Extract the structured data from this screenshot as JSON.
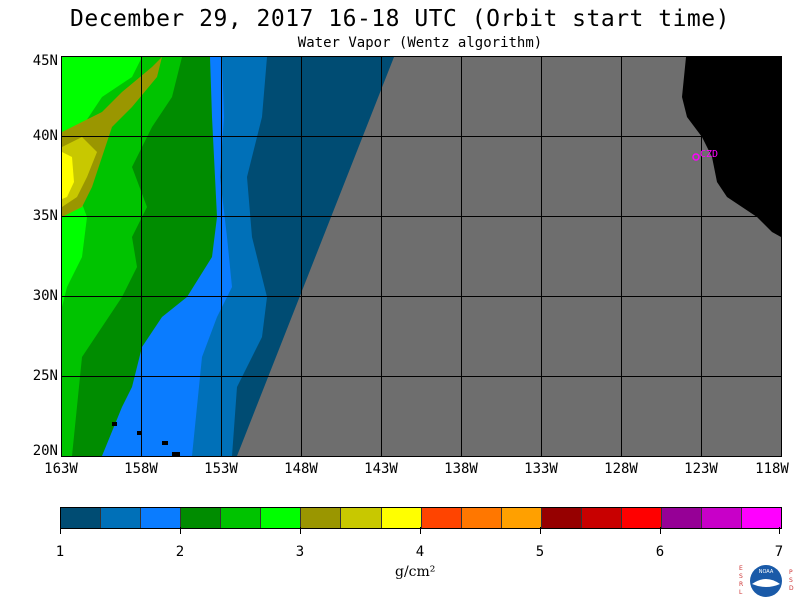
{
  "header": {
    "title": "December 29, 2017  16-18 UTC  (Orbit start time)",
    "subtitle": "Water Vapor (Wentz algorithm)"
  },
  "map": {
    "lat_labels": [
      "45N",
      "40N",
      "35N",
      "30N",
      "25N",
      "20N"
    ],
    "lon_labels": [
      "163W",
      "158W",
      "153W",
      "148W",
      "143W",
      "138W",
      "133W",
      "128W",
      "123W",
      "118W"
    ],
    "station_label": "CZD",
    "station_color": "#ff00ff",
    "no_data_color": "#6e6e6e",
    "land_color": "#000000"
  },
  "colorbar": {
    "colors": [
      "#004c73",
      "#0070b8",
      "#0a7cff",
      "#008c00",
      "#00c300",
      "#00ff00",
      "#9a9600",
      "#c8c800",
      "#ffff00",
      "#ff4400",
      "#ff7700",
      "#ffa000",
      "#960000",
      "#c80000",
      "#ff0000",
      "#960096",
      "#c800c8",
      "#ff00ff"
    ],
    "tick_labels": [
      "1",
      "2",
      "3",
      "4",
      "5",
      "6",
      "7"
    ],
    "units_label": "g/cm²"
  },
  "logo": {
    "left_letters": "ESRL",
    "right_letters": "PSD",
    "center_text": "NOAA"
  }
}
